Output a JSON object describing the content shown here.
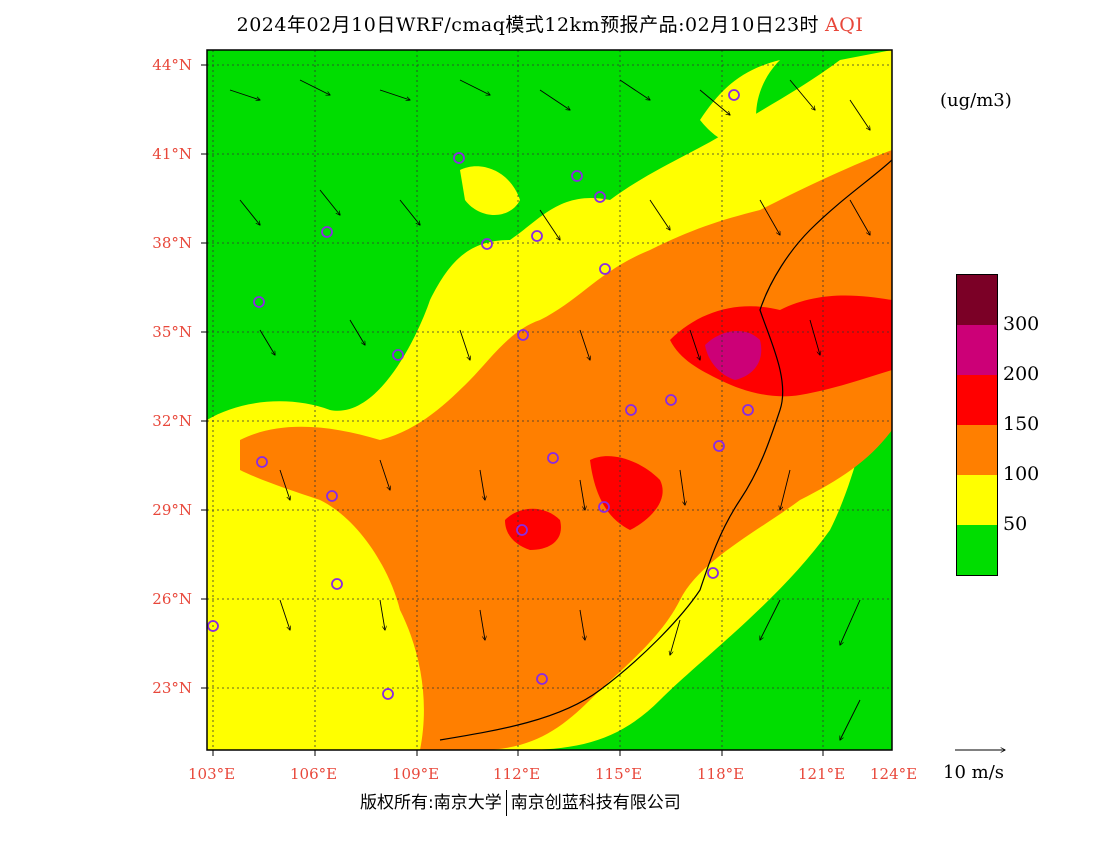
{
  "title": {
    "main": "2024年02月10日WRF/cmaq模式12km预报产品:02月10日23时",
    "product": "AQI"
  },
  "axes": {
    "lat_labels": [
      "44°N",
      "41°N",
      "38°N",
      "35°N",
      "32°N",
      "29°N",
      "26°N",
      "23°N"
    ],
    "lon_labels": [
      "103°E",
      "106°E",
      "109°E",
      "112°E",
      "115°E",
      "118°E",
      "121°E",
      "124°E"
    ]
  },
  "legend": {
    "unit": "(ug/m3)",
    "labels": [
      "300",
      "200",
      "150",
      "100",
      "50"
    ],
    "colors": [
      "#7b0026",
      "#cc0077",
      "#ff0000",
      "#ff7f00",
      "#ffff00",
      "#00dd00"
    ]
  },
  "wind_vector": {
    "label": "10 m/s"
  },
  "copyright": {
    "left": "版权所有:南京大学",
    "right": "南京创蓝科技有限公司"
  },
  "colors": {
    "label_red": "#e8473a",
    "good": "#00dd00",
    "moderate": "#ffff00",
    "usg": "#ff7f00",
    "unhealthy": "#ff0000",
    "very_unhealthy": "#cc0077",
    "hazardous": "#7b0026",
    "site_marker": "#8a2be2"
  }
}
